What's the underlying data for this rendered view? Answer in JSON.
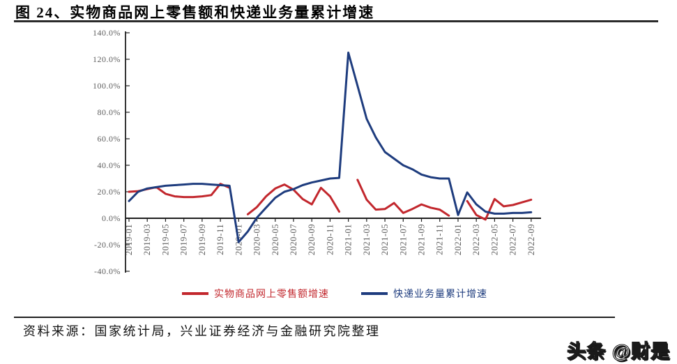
{
  "header": {
    "title": "图 24、实物商品网上零售额和快递业务量累计增速"
  },
  "chart_data": {
    "type": "line",
    "title": "实物商品网上零售额和快递业务量累计增速",
    "x": [
      "2019-01",
      "2019-02",
      "2019-03",
      "2019-04",
      "2019-05",
      "2019-06",
      "2019-07",
      "2019-08",
      "2019-09",
      "2019-10",
      "2019-11",
      "2019-12",
      "2020-01",
      "2020-02",
      "2020-03",
      "2020-04",
      "2020-05",
      "2020-06",
      "2020-07",
      "2020-08",
      "2020-09",
      "2020-10",
      "2020-11",
      "2020-12",
      "2021-01",
      "2021-02",
      "2021-03",
      "2021-04",
      "2021-05",
      "2021-06",
      "2021-07",
      "2021-08",
      "2021-09",
      "2021-10",
      "2021-11",
      "2021-12",
      "2022-01",
      "2022-02",
      "2022-03",
      "2022-04",
      "2022-05",
      "2022-06",
      "2022-07",
      "2022-08",
      "2022-09"
    ],
    "x_tick_labels": [
      "2019-01",
      "2019-03",
      "2019-05",
      "2019-07",
      "2019-09",
      "2019-11",
      "2020-01",
      "2020-03",
      "2020-05",
      "2020-07",
      "2020-09",
      "2020-11",
      "2021-01",
      "2021-03",
      "2021-05",
      "2021-07",
      "2021-09",
      "2021-11",
      "2022-01",
      "2022-03",
      "2022-05",
      "2022-07",
      "2022-09"
    ],
    "y_ticks": [
      "140.0%",
      "120.0%",
      "100.0%",
      "80.0%",
      "60.0%",
      "40.0%",
      "20.0%",
      "0.0%",
      "-20.0%",
      "-40.0%"
    ],
    "ylim": [
      -40,
      140
    ],
    "y_unit": "percent",
    "grid": false,
    "legend_position": "bottom",
    "series": [
      {
        "name": "实物商品网上零售额增速",
        "color": "#c2272d",
        "values": [
          20,
          20.5,
          22,
          23.5,
          18.5,
          16.5,
          16,
          16,
          16.5,
          17.5,
          26,
          23,
          null,
          3,
          8.5,
          16.5,
          22.5,
          25.5,
          21.5,
          14.5,
          10.5,
          23,
          16.5,
          5,
          null,
          29,
          14,
          6.5,
          7,
          11.5,
          4,
          7,
          10.5,
          8,
          6.5,
          2,
          null,
          13,
          2.5,
          -1,
          14.5,
          9,
          10,
          12,
          14
        ]
      },
      {
        "name": "快递业务量累计增速",
        "color": "#1e3c7e",
        "values": [
          13,
          20,
          22.5,
          23.5,
          24.5,
          25,
          25.5,
          26,
          26,
          25.5,
          25,
          24.5,
          -18,
          -10,
          0.5,
          8,
          15.5,
          20,
          22,
          25,
          27,
          28.5,
          30,
          30.5,
          125,
          100,
          75,
          61,
          50,
          45,
          40,
          37,
          33,
          31,
          30,
          30,
          2.5,
          19.5,
          10.5,
          5,
          3.5,
          3.5,
          4,
          4,
          4.5
        ]
      }
    ]
  },
  "footer": {
    "source": "资料来源：国家统计局，兴业证券经济与金融研究院整理",
    "watermark": "头条 @财是"
  }
}
